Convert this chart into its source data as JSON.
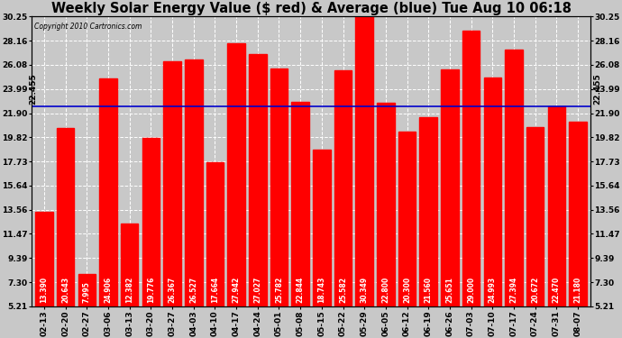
{
  "title": "Weekly Solar Energy Value ($ red) & Average (blue) Tue Aug 10 06:18",
  "copyright": "Copyright 2010 Cartronics.com",
  "average": 22.455,
  "average_label": "22.455",
  "bar_color": "#ff0000",
  "avg_line_color": "#0000cc",
  "background_color": "#c8c8c8",
  "plot_bg_color": "#c8c8c8",
  "categories": [
    "02-13",
    "02-20",
    "02-27",
    "03-06",
    "03-13",
    "03-20",
    "03-27",
    "04-03",
    "04-10",
    "04-17",
    "04-24",
    "05-01",
    "05-08",
    "05-15",
    "05-22",
    "05-29",
    "06-05",
    "06-12",
    "06-19",
    "06-26",
    "07-03",
    "07-10",
    "07-17",
    "07-24",
    "07-31",
    "08-07"
  ],
  "values": [
    13.39,
    20.643,
    7.995,
    24.906,
    12.382,
    19.776,
    26.367,
    26.527,
    17.664,
    27.942,
    27.027,
    25.782,
    22.844,
    18.743,
    25.582,
    30.349,
    22.8,
    20.3,
    21.56,
    25.651,
    29.0,
    24.993,
    27.394,
    20.672,
    22.47,
    21.18
  ],
  "ylim_min": 5.21,
  "ylim_max": 30.25,
  "yticks": [
    5.21,
    7.3,
    9.39,
    11.47,
    13.56,
    15.64,
    17.73,
    19.82,
    21.9,
    23.99,
    26.08,
    28.16,
    30.25
  ],
  "grid_color": "#ffffff",
  "title_fontsize": 10.5,
  "tick_fontsize": 6.5,
  "bar_value_fontsize": 5.5
}
